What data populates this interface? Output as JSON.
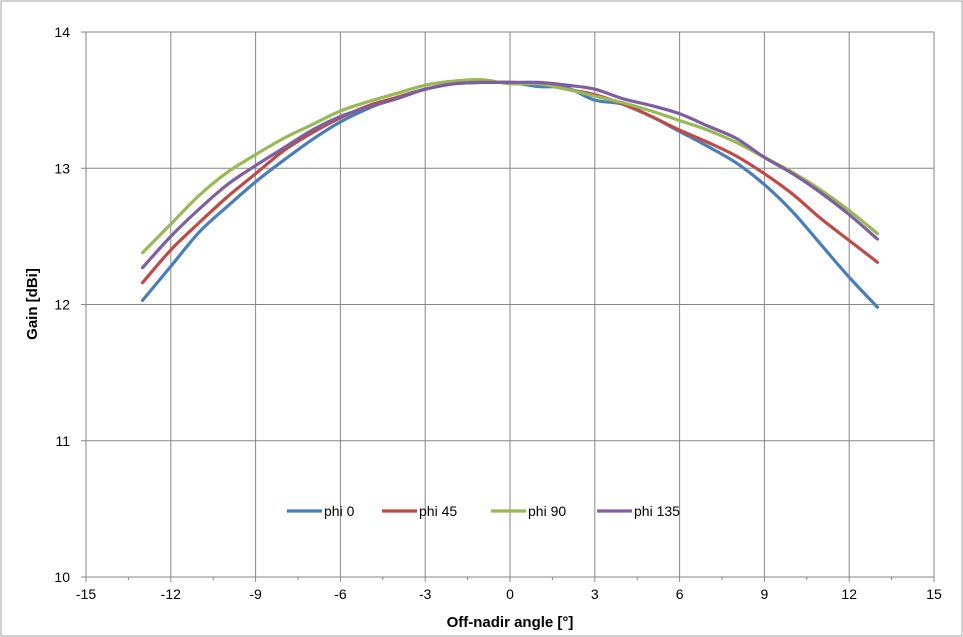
{
  "chart_data": {
    "type": "line",
    "title": "",
    "xlabel": "Off-nadir angle [°]",
    "ylabel": "Gain [dBi]",
    "xlim": [
      -15,
      15
    ],
    "ylim": [
      10,
      14
    ],
    "x_ticks": [
      -15,
      -12,
      -9,
      -6,
      -3,
      0,
      3,
      6,
      9,
      12,
      15
    ],
    "y_ticks": [
      10,
      11,
      12,
      13,
      14
    ],
    "grid": true,
    "legend_position": "center-bottom",
    "x": [
      -13,
      -12,
      -11,
      -10,
      -9,
      -8,
      -7,
      -6,
      -5,
      -4,
      -3,
      -2,
      -1,
      0,
      1,
      2,
      3,
      4,
      5,
      6,
      7,
      8,
      9,
      10,
      11,
      12,
      13
    ],
    "series": [
      {
        "name": "phi 0",
        "color": "#4a7ebb",
        "values": [
          12.03,
          12.28,
          12.53,
          12.72,
          12.9,
          13.06,
          13.21,
          13.34,
          13.44,
          13.52,
          13.58,
          13.62,
          13.63,
          13.63,
          13.6,
          13.59,
          13.5,
          13.47,
          13.38,
          13.27,
          13.16,
          13.04,
          12.88,
          12.68,
          12.44,
          12.2,
          11.98
        ]
      },
      {
        "name": "phi 45",
        "color": "#be4b48",
        "values": [
          12.16,
          12.4,
          12.6,
          12.79,
          12.96,
          13.13,
          13.26,
          13.37,
          13.46,
          13.52,
          13.58,
          13.62,
          13.63,
          13.63,
          13.62,
          13.58,
          13.54,
          13.47,
          13.38,
          13.28,
          13.19,
          13.09,
          12.96,
          12.81,
          12.63,
          12.47,
          12.31
        ]
      },
      {
        "name": "phi 90",
        "color": "#98b954",
        "values": [
          12.38,
          12.59,
          12.8,
          12.97,
          13.1,
          13.22,
          13.32,
          13.42,
          13.49,
          13.55,
          13.61,
          13.64,
          13.65,
          13.62,
          13.62,
          13.58,
          13.53,
          13.48,
          13.42,
          13.35,
          13.28,
          13.19,
          13.08,
          12.97,
          12.84,
          12.69,
          12.52
        ]
      },
      {
        "name": "phi 135",
        "color": "#7d5fa0",
        "values": [
          12.27,
          12.5,
          12.7,
          12.88,
          13.02,
          13.15,
          13.28,
          13.38,
          13.45,
          13.51,
          13.58,
          13.62,
          13.63,
          13.63,
          13.63,
          13.61,
          13.58,
          13.51,
          13.46,
          13.4,
          13.31,
          13.22,
          13.08,
          12.96,
          12.82,
          12.66,
          12.48
        ]
      }
    ]
  }
}
